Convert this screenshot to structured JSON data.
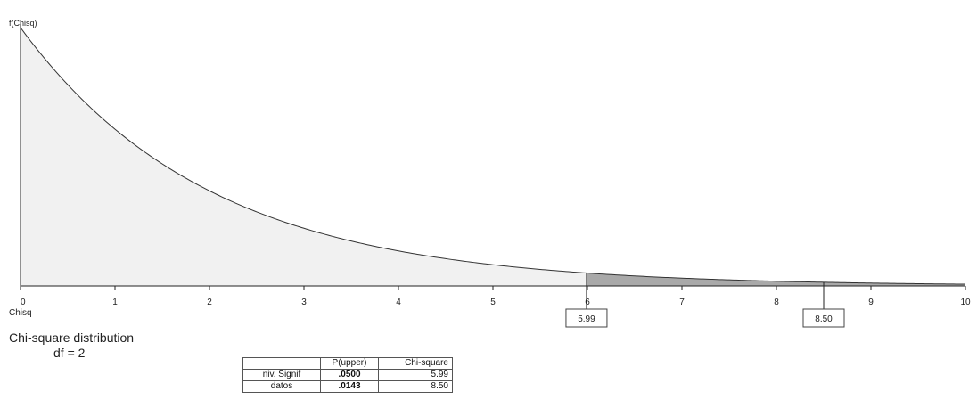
{
  "chart_data": {
    "type": "area",
    "distribution": "chi-square",
    "df": 2,
    "ylabel": "f(Chisq)",
    "xlabel": "Chisq",
    "xlim": [
      0,
      10
    ],
    "x_ticks": [
      "0",
      "1",
      "2",
      "3",
      "4",
      "5",
      "6",
      "7",
      "8",
      "9",
      "10"
    ],
    "markers": [
      {
        "value": 5.99,
        "label": "5.99"
      },
      {
        "value": 8.5,
        "label": "8.50"
      }
    ],
    "shaded_upper_tail_from": 5.99,
    "colors": {
      "curve": "#333333",
      "fill": "#f1f1f1",
      "tail_fill": "#a9a9a9",
      "axis": "#222222"
    }
  },
  "info": {
    "title": "Chi-square distribution",
    "df_label": "df = 2"
  },
  "table": {
    "header": [
      "",
      "P(upper)",
      "Chi-square"
    ],
    "rows": [
      [
        "niv. Signif",
        ".0500",
        "5.99"
      ],
      [
        "datos",
        ".0143",
        "8.50"
      ]
    ]
  }
}
